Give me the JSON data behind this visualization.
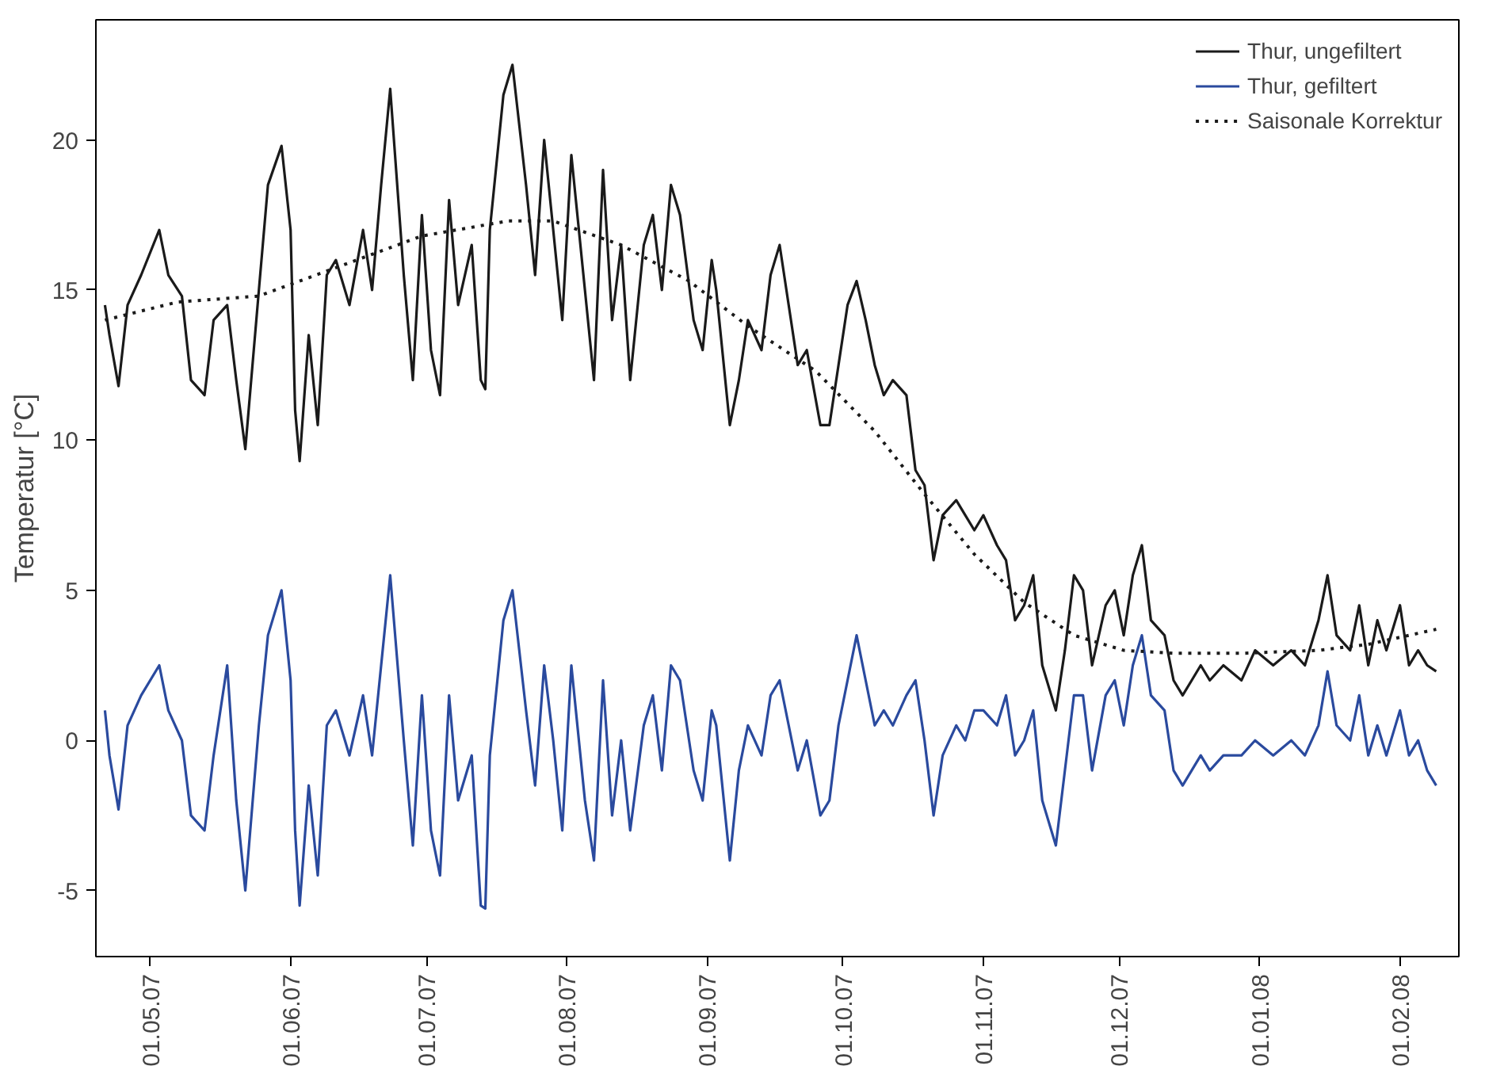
{
  "chart_data": {
    "type": "line",
    "ylabel": "Temperatur [°C]",
    "x": [
      "2007-04-21",
      "2007-04-22",
      "2007-04-24",
      "2007-04-26",
      "2007-04-29",
      "2007-05-03",
      "2007-05-05",
      "2007-05-08",
      "2007-05-10",
      "2007-05-13",
      "2007-05-15",
      "2007-05-18",
      "2007-05-20",
      "2007-05-22",
      "2007-05-25",
      "2007-05-27",
      "2007-05-30",
      "2007-06-01",
      "2007-06-02",
      "2007-06-03",
      "2007-06-05",
      "2007-06-07",
      "2007-06-09",
      "2007-06-11",
      "2007-06-14",
      "2007-06-17",
      "2007-06-19",
      "2007-06-21",
      "2007-06-23",
      "2007-06-26",
      "2007-06-28",
      "2007-06-30",
      "2007-07-02",
      "2007-07-04",
      "2007-07-06",
      "2007-07-08",
      "2007-07-11",
      "2007-07-13",
      "2007-07-14",
      "2007-07-15",
      "2007-07-18",
      "2007-07-20",
      "2007-07-23",
      "2007-07-25",
      "2007-07-27",
      "2007-07-29",
      "2007-07-31",
      "2007-08-02",
      "2007-08-05",
      "2007-08-07",
      "2007-08-09",
      "2007-08-11",
      "2007-08-13",
      "2007-08-15",
      "2007-08-18",
      "2007-08-20",
      "2007-08-22",
      "2007-08-24",
      "2007-08-26",
      "2007-08-29",
      "2007-08-31",
      "2007-09-02",
      "2007-09-03",
      "2007-09-06",
      "2007-09-08",
      "2007-09-10",
      "2007-09-13",
      "2007-09-15",
      "2007-09-17",
      "2007-09-19",
      "2007-09-21",
      "2007-09-23",
      "2007-09-26",
      "2007-09-28",
      "2007-09-30",
      "2007-10-02",
      "2007-10-04",
      "2007-10-06",
      "2007-10-08",
      "2007-10-10",
      "2007-10-12",
      "2007-10-15",
      "2007-10-17",
      "2007-10-19",
      "2007-10-21",
      "2007-10-23",
      "2007-10-26",
      "2007-10-28",
      "2007-10-30",
      "2007-11-01",
      "2007-11-04",
      "2007-11-06",
      "2007-11-08",
      "2007-11-10",
      "2007-11-12",
      "2007-11-14",
      "2007-11-17",
      "2007-11-19",
      "2007-11-21",
      "2007-11-23",
      "2007-11-25",
      "2007-11-28",
      "2007-11-30",
      "2007-12-02",
      "2007-12-04",
      "2007-12-06",
      "2007-12-08",
      "2007-12-11",
      "2007-12-13",
      "2007-12-15",
      "2007-12-17",
      "2007-12-19",
      "2007-12-21",
      "2007-12-24",
      "2007-12-28",
      "2007-12-31",
      "2008-01-04",
      "2008-01-08",
      "2008-01-11",
      "2008-01-14",
      "2008-01-16",
      "2008-01-18",
      "2008-01-21",
      "2008-01-23",
      "2008-01-25",
      "2008-01-27",
      "2008-01-29",
      "2008-02-01",
      "2008-02-03",
      "2008-02-05",
      "2008-02-07",
      "2008-02-09"
    ],
    "series": [
      {
        "name": "Thur, ungefiltert",
        "color": "#1a1a1a",
        "line_style": "solid",
        "values": [
          14.5,
          13.5,
          11.8,
          14.5,
          15.5,
          17.0,
          15.5,
          14.8,
          12.0,
          11.5,
          14.0,
          14.5,
          12.0,
          9.7,
          15.0,
          18.5,
          19.8,
          17.0,
          11.0,
          9.3,
          13.5,
          10.5,
          15.5,
          16.0,
          14.5,
          17.0,
          15.0,
          18.5,
          21.7,
          15.5,
          12.0,
          17.5,
          13.0,
          11.5,
          18.0,
          14.5,
          16.5,
          12.0,
          11.7,
          17.0,
          21.5,
          22.5,
          18.5,
          15.5,
          20.0,
          17.0,
          14.0,
          19.5,
          15.0,
          12.0,
          19.0,
          14.0,
          16.5,
          12.0,
          16.5,
          17.5,
          15.0,
          18.5,
          17.5,
          14.0,
          13.0,
          16.0,
          15.0,
          10.5,
          12.0,
          14.0,
          13.0,
          15.5,
          16.5,
          14.5,
          12.5,
          13.0,
          10.5,
          10.5,
          12.5,
          14.5,
          15.3,
          14.0,
          12.5,
          11.5,
          12.0,
          11.5,
          9.0,
          8.5,
          6.0,
          7.5,
          8.0,
          7.5,
          7.0,
          7.5,
          6.5,
          6.0,
          4.0,
          4.5,
          5.5,
          2.5,
          1.0,
          3.0,
          5.5,
          5.0,
          2.5,
          4.5,
          5.0,
          3.5,
          5.5,
          6.5,
          4.0,
          3.5,
          2.0,
          1.5,
          2.0,
          2.5,
          2.0,
          2.5,
          2.0,
          3.0,
          2.5,
          3.0,
          2.5,
          4.0,
          5.5,
          3.5,
          3.0,
          4.5,
          2.5,
          4.0,
          3.0,
          4.5,
          2.5,
          3.0,
          2.5,
          2.3
        ]
      },
      {
        "name": "Thur, gefiltert",
        "color": "#2a4a9e",
        "line_style": "solid",
        "values": [
          1.0,
          -0.5,
          -2.3,
          0.5,
          1.5,
          2.5,
          1.0,
          0.0,
          -2.5,
          -3.0,
          -0.5,
          2.5,
          -2.0,
          -5.0,
          0.5,
          3.5,
          5.0,
          2.0,
          -3.0,
          -5.5,
          -1.5,
          -4.5,
          0.5,
          1.0,
          -0.5,
          1.5,
          -0.5,
          2.5,
          5.5,
          0.0,
          -3.5,
          1.5,
          -3.0,
          -4.5,
          1.5,
          -2.0,
          -0.5,
          -5.5,
          -5.6,
          -0.5,
          4.0,
          5.0,
          1.0,
          -1.5,
          2.5,
          0.0,
          -3.0,
          2.5,
          -2.0,
          -4.0,
          2.0,
          -2.5,
          0.0,
          -3.0,
          0.5,
          1.5,
          -1.0,
          2.5,
          2.0,
          -1.0,
          -2.0,
          1.0,
          0.5,
          -4.0,
          -1.0,
          0.5,
          -0.5,
          1.5,
          2.0,
          0.5,
          -1.0,
          0.0,
          -2.5,
          -2.0,
          0.5,
          2.0,
          3.5,
          2.0,
          0.5,
          1.0,
          0.5,
          1.5,
          2.0,
          0.0,
          -2.5,
          -0.5,
          0.5,
          0.0,
          1.0,
          1.0,
          0.5,
          1.5,
          -0.5,
          0.0,
          1.0,
          -2.0,
          -3.5,
          -1.0,
          1.5,
          1.5,
          -1.0,
          1.5,
          2.0,
          0.5,
          2.5,
          3.5,
          1.5,
          1.0,
          -1.0,
          -1.5,
          -1.0,
          -0.5,
          -1.0,
          -0.5,
          -0.5,
          0.0,
          -0.5,
          0.0,
          -0.5,
          0.5,
          2.3,
          0.5,
          0.0,
          1.5,
          -0.5,
          0.5,
          -0.5,
          1.0,
          -0.5,
          0.0,
          -1.0,
          -1.5
        ]
      },
      {
        "name": "Saisonale Korrektur",
        "color": "#1a1a1a",
        "line_style": "dotted",
        "x": [
          "2007-04-21",
          "2007-05-07",
          "2007-05-25",
          "2007-06-12",
          "2007-06-30",
          "2007-07-19",
          "2007-07-29",
          "2007-08-13",
          "2007-08-28",
          "2007-09-10",
          "2007-09-25",
          "2007-10-08",
          "2007-10-19",
          "2007-10-30",
          "2007-11-10",
          "2007-11-21",
          "2007-12-02",
          "2007-12-13",
          "2007-12-28",
          "2008-01-14",
          "2008-01-25",
          "2008-02-09"
        ],
        "values": [
          14.0,
          14.6,
          14.8,
          15.8,
          16.8,
          17.3,
          17.3,
          16.5,
          15.3,
          13.8,
          12.3,
          10.3,
          8.2,
          6.2,
          4.6,
          3.5,
          3.0,
          2.9,
          2.9,
          3.0,
          3.2,
          3.7
        ]
      }
    ],
    "xlim": [
      "2007-04-19",
      "2008-02-14"
    ],
    "xticks": [
      {
        "value": "2007-05-01",
        "label": "01.05.07"
      },
      {
        "value": "2007-06-01",
        "label": "01.06.07"
      },
      {
        "value": "2007-07-01",
        "label": "01.07.07"
      },
      {
        "value": "2007-08-01",
        "label": "01.08.07"
      },
      {
        "value": "2007-09-01",
        "label": "01.09.07"
      },
      {
        "value": "2007-10-01",
        "label": "01.10.07"
      },
      {
        "value": "2007-11-01",
        "label": "01.11.07"
      },
      {
        "value": "2007-12-01",
        "label": "01.12.07"
      },
      {
        "value": "2008-01-01",
        "label": "01.01.08"
      },
      {
        "value": "2008-02-01",
        "label": "01.02.08"
      }
    ],
    "ylim": [
      -7.2,
      24
    ],
    "yticks": [
      -5,
      0,
      5,
      10,
      15,
      20
    ],
    "grid": false,
    "legend": "top right"
  }
}
